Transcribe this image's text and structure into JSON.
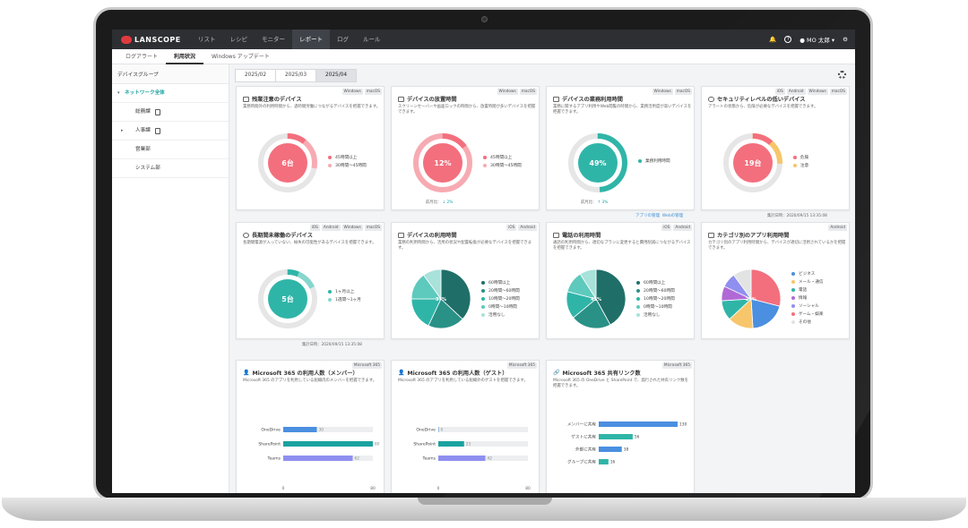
{
  "nav": {
    "logo": "LANSCOPE",
    "items": [
      "リスト",
      "レシピ",
      "モニター",
      "レポート",
      "ログ",
      "ルール"
    ],
    "active_index": 3,
    "user": "MO 太郎"
  },
  "subtabs": {
    "items": [
      "ログアラート",
      "利用状況",
      "Windows アップデート"
    ],
    "active_index": 1
  },
  "sidebar": {
    "header": "デバイスグループ",
    "root": "ネットワーク全体",
    "items": [
      {
        "label": "総務課",
        "has_doc": true,
        "expand": false
      },
      {
        "label": "人事課",
        "has_doc": true,
        "expand": true
      },
      {
        "label": "営業部",
        "has_doc": false,
        "expand": false
      },
      {
        "label": "システム部",
        "has_doc": false,
        "expand": false
      }
    ]
  },
  "periods": {
    "items": [
      "2025/02",
      "2025/03",
      "2025/04"
    ],
    "active_index": 2
  },
  "colors": {
    "accent": "#1aa2a0",
    "red": "#f36f7d",
    "pink": "#f7aab2",
    "teal": "#2fb5a8",
    "dark_teal": "#1f6f68",
    "blue": "#4a8fe0",
    "purple": "#8f8ff0"
  },
  "cards": {
    "c1": {
      "title": "残業注意のデバイス",
      "tags": [
        "Windows",
        "macOS"
      ],
      "desc": "業務時間外の利用時間から、過時間労働につながるデバイスを把握できます。",
      "center": "6台",
      "legend": [
        "45時間以上",
        "30時間〜45時間"
      ]
    },
    "c2": {
      "title": "デバイスの放置時間",
      "tags": [
        "Windows",
        "macOS"
      ],
      "desc": "スクリーンセーバーや画面ロックの時間から、放置時間が多いデバイスを把握できます。",
      "center": "12%",
      "legend": [
        "45時間以上",
        "30時間〜45時間"
      ],
      "foot_label": "前月比：",
      "foot_value": "↓ 2%"
    },
    "c3": {
      "title": "デバイスの業務利用時間",
      "tags": [
        "Windows",
        "macOS"
      ],
      "desc": "業務に関するアプリ利用やWeb閲覧の時間から、業務活用度が高いデバイスを把握できます。",
      "center": "49%",
      "legend": [
        "業務利用時間"
      ],
      "foot_label": "前月比：",
      "foot_value": "↑ 3%",
      "link1": "アプリの管理",
      "link2": "Webの管理"
    },
    "c4": {
      "title": "セキュリティレベルの低いデバイス",
      "tags": [
        "iOS",
        "Android",
        "Windows",
        "macOS"
      ],
      "desc": "アラートの状態から、危険が必要なデバイスを把握できます。",
      "center": "19台",
      "legend": [
        "危険",
        "注意"
      ],
      "updated": "集計日時：2020/09/15 13:35:08"
    },
    "c5": {
      "title": "長期間未稼働のデバイス",
      "tags": [
        "iOS",
        "Android",
        "Windows",
        "macOS"
      ],
      "desc": "長期間電源が入っていない、紛失の可能性があるデバイスを把握できます。",
      "center": "5台",
      "legend": [
        "1ヶ月以上",
        "1週間〜1ヶ月"
      ],
      "updated": "集計日時：2020/09/15 13:35:08"
    },
    "c6": {
      "title": "デバイスの利用時間",
      "tags": [
        "iOS",
        "Android"
      ],
      "desc": "業務の利用時間から、活用の状況や配置転換が必要なデバイスを把握できます。",
      "center": "37%",
      "legend": [
        "60時間以上",
        "20時間〜60時間",
        "10時間〜20時間",
        "0時間〜10時間",
        "活用なし"
      ]
    },
    "c7": {
      "title": "電話の利用時間",
      "tags": [
        "iOS",
        "Android"
      ],
      "desc": "通話の利用時間から、適切なプランに変更すると費用削減につながるデバイスを把握できます。",
      "center": "42%",
      "legend": [
        "60時間以上",
        "20時間〜60時間",
        "10時間〜20時間",
        "0時間〜10時間",
        "活用なし"
      ]
    },
    "c8": {
      "title": "カテゴリ別のアプリ利用時間",
      "tags": [
        "Android"
      ],
      "desc": "カテゴリ別のアプリ利用時間から、デバイスが適切に活用されているかを把握できます。",
      "center": "29%",
      "legend": [
        "ビジネス",
        "メール・通信",
        "電話",
        "情報",
        "ソーシャル",
        "ゲーム・娯楽",
        "その他"
      ]
    },
    "c9": {
      "title": "Microsoft 365 の利用人数（メンバー）",
      "tags": [
        "Microsoft 365"
      ],
      "desc": "Microsoft 365 のアプリを利用している組織内のメンバーを把握できます。",
      "bars": [
        {
          "label": "OneDrive",
          "value": 30
        },
        {
          "label": "SharePoint",
          "value": 80
        },
        {
          "label": "Teams",
          "value": 62
        }
      ],
      "axis": [
        "0",
        "80"
      ]
    },
    "c10": {
      "title": "Microsoft 365 の利用人数（ゲスト）",
      "tags": [
        "Microsoft 365"
      ],
      "desc": "Microsoft 365 のアプリを利用している組織外のゲストを把握できます。",
      "bars": [
        {
          "label": "OneDrive",
          "value": 0
        },
        {
          "label": "SharePoint",
          "value": 23
        },
        {
          "label": "Teams",
          "value": 42
        }
      ],
      "axis": [
        "0",
        "80"
      ]
    },
    "c11": {
      "title": "Microsoft 365 共有リンク数",
      "tags": [
        "Microsoft 365"
      ],
      "desc": "Microsoft 365 の OneDrive と SharePoint で、発行された共有リンク数を把握できます。",
      "bars": [
        {
          "label": "メンバーに共有",
          "value": 130
        },
        {
          "label": "ゲストに共有",
          "value": 56
        },
        {
          "label": "外部に共有",
          "value": 38
        },
        {
          "label": "グループに共有",
          "value": 16
        }
      ]
    }
  },
  "chart_data": [
    {
      "type": "pie",
      "title": "デバイスの利用時間",
      "categories": [
        "60時間以上",
        "20時間〜60時間",
        "10時間〜20時間",
        "0時間〜10時間",
        "活用なし"
      ],
      "values": [
        37,
        20,
        18,
        15,
        10
      ]
    },
    {
      "type": "pie",
      "title": "電話の利用時間",
      "categories": [
        "60時間以上",
        "20時間〜60時間",
        "10時間〜20時間",
        "0時間〜10時間",
        "活用なし"
      ],
      "values": [
        42,
        22,
        15,
        12,
        9
      ]
    },
    {
      "type": "pie",
      "title": "カテゴリ別のアプリ利用時間",
      "categories": [
        "ビジネス",
        "メール・通信",
        "電話",
        "情報",
        "ソーシャル",
        "ゲーム・娯楽",
        "その他"
      ],
      "values": [
        29,
        20,
        14,
        11,
        8,
        8,
        10
      ]
    },
    {
      "type": "bar",
      "title": "Microsoft 365 の利用人数（メンバー）",
      "categories": [
        "OneDrive",
        "SharePoint",
        "Teams"
      ],
      "values": [
        30,
        80,
        62
      ],
      "ylim": [
        0,
        80
      ]
    },
    {
      "type": "bar",
      "title": "Microsoft 365 の利用人数（ゲスト）",
      "categories": [
        "OneDrive",
        "SharePoint",
        "Teams"
      ],
      "values": [
        0,
        23,
        42
      ],
      "ylim": [
        0,
        80
      ]
    },
    {
      "type": "bar",
      "title": "Microsoft 365 共有リンク数",
      "categories": [
        "メンバーに共有",
        "ゲストに共有",
        "外部に共有",
        "グループに共有"
      ],
      "values": [
        130,
        56,
        38,
        16
      ]
    }
  ]
}
